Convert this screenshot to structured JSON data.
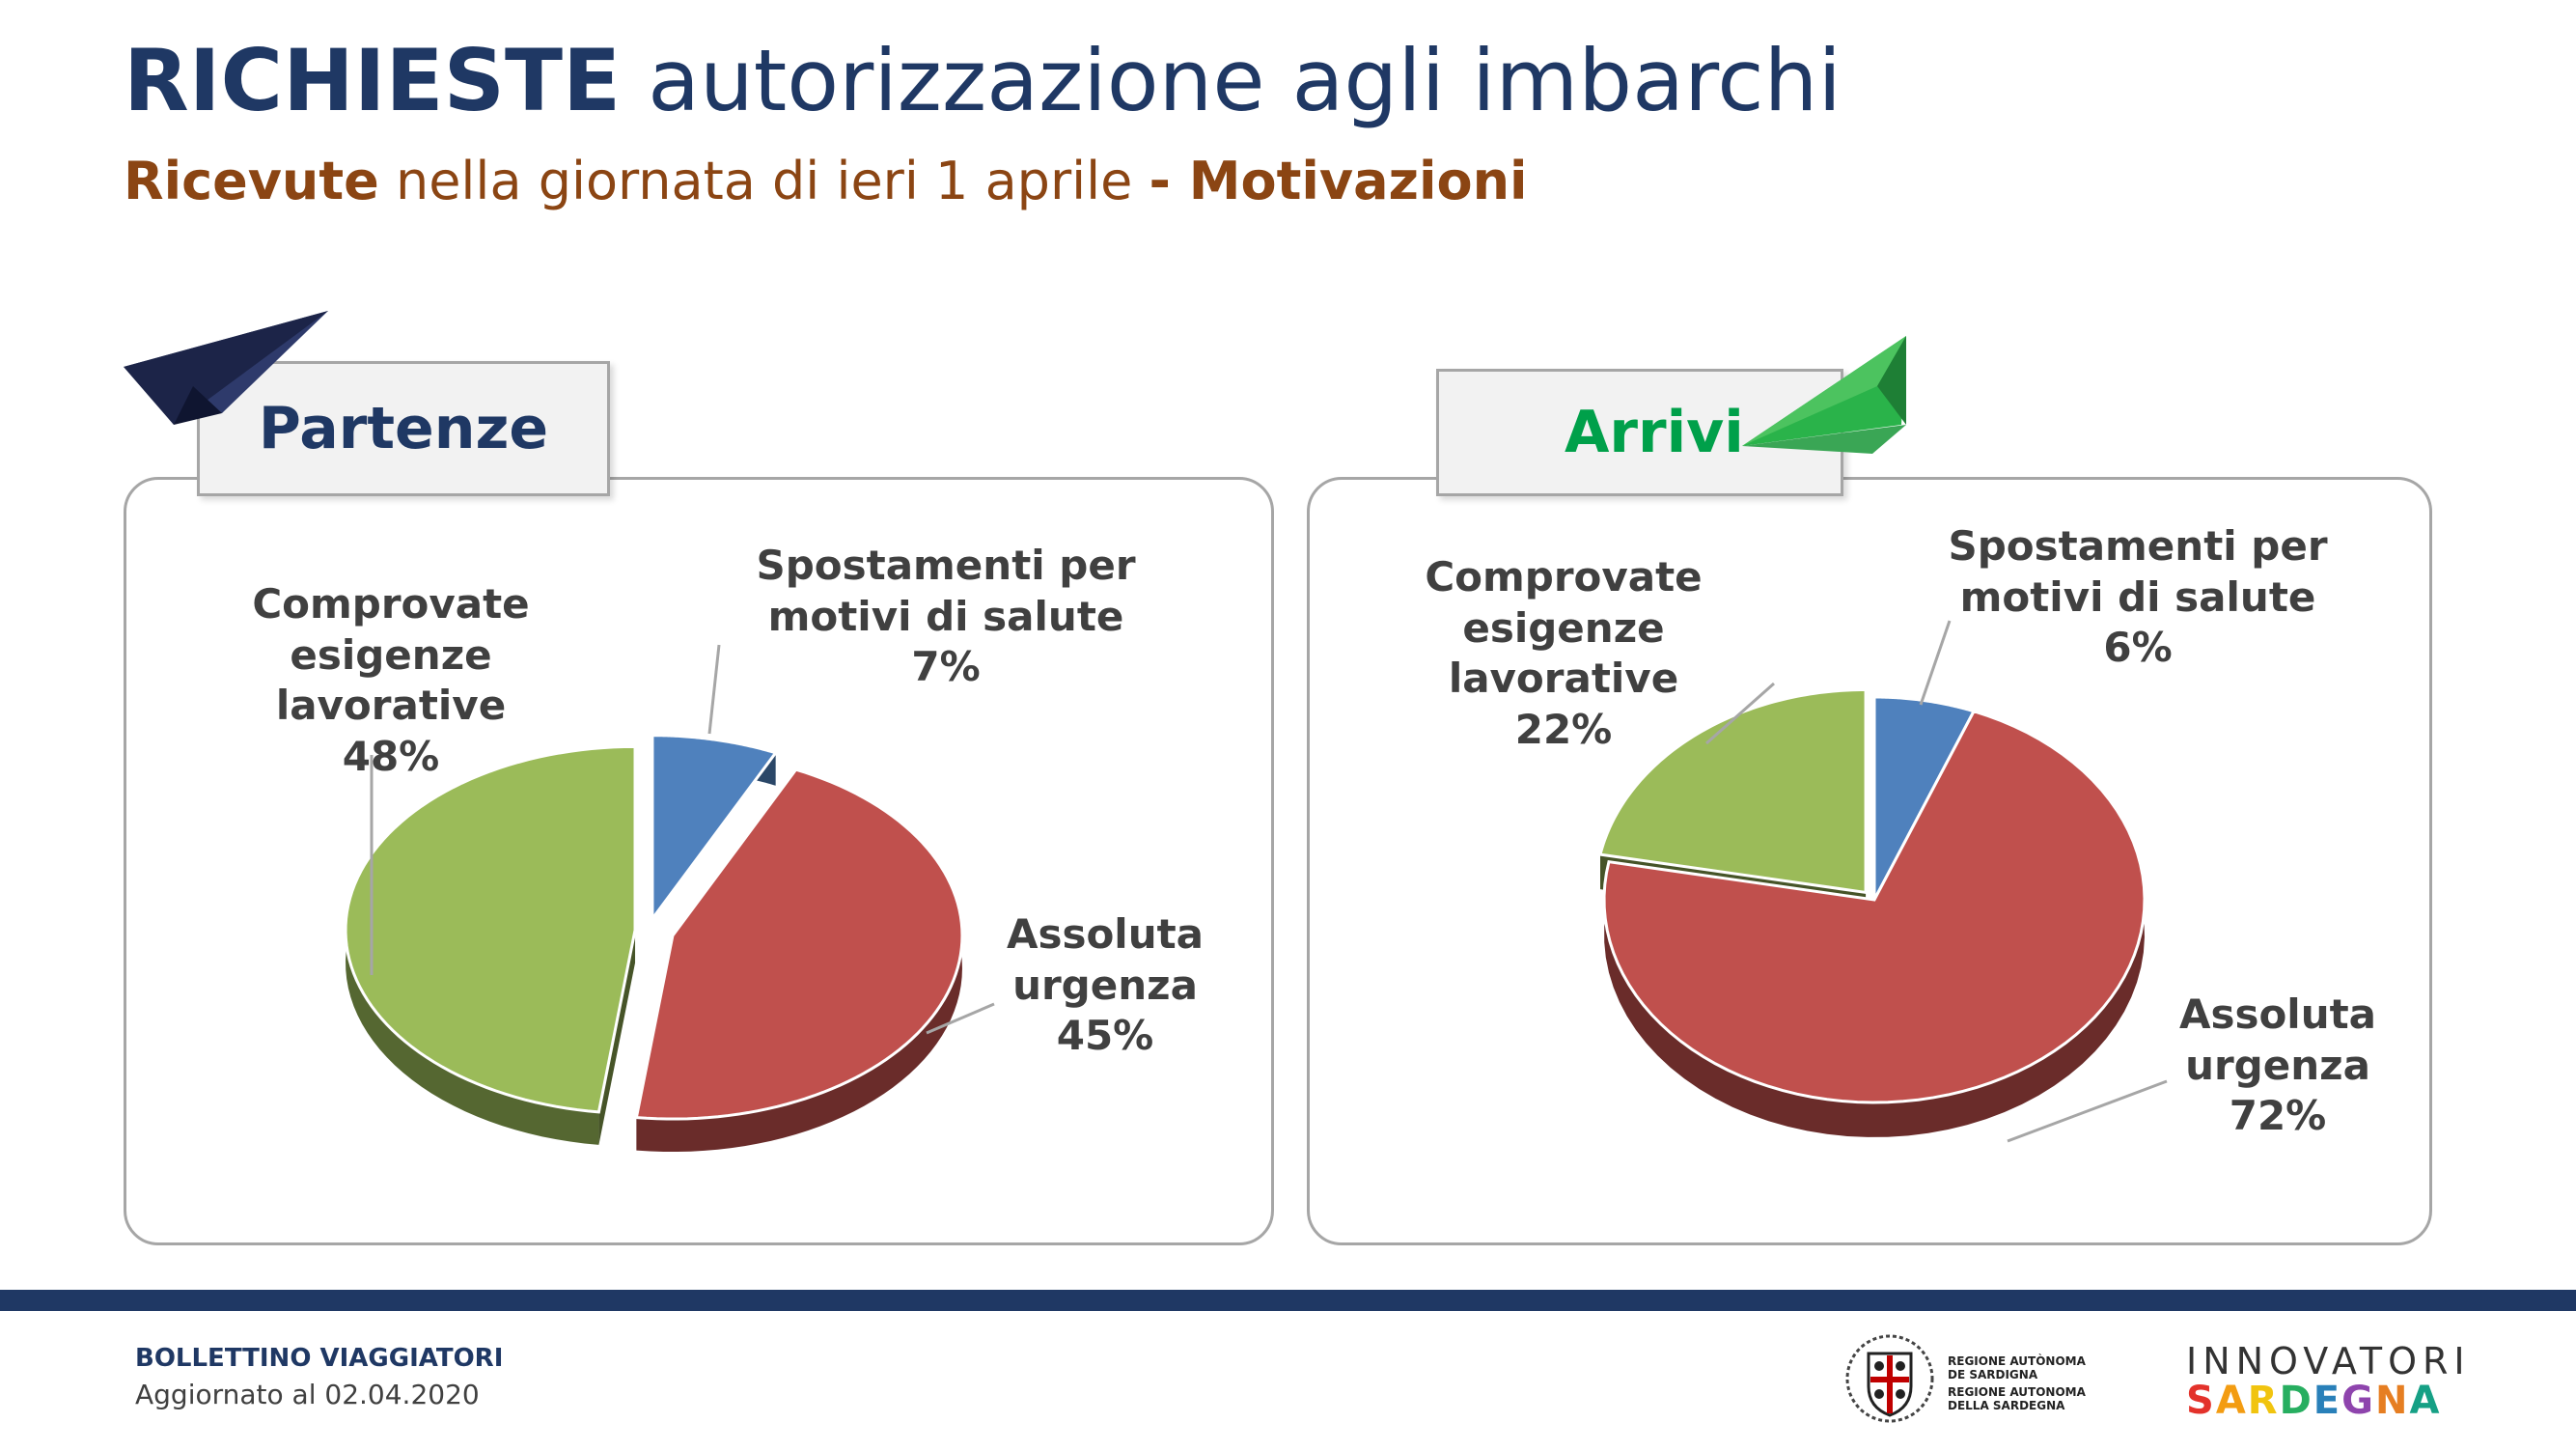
{
  "header": {
    "title_bold": "RICHIESTE",
    "title_rest": "autorizzazione agli imbarchi",
    "subtitle_bold1": "Ricevute",
    "subtitle_mid": "nella giornata di ieri 1 aprile",
    "subtitle_bold2": "- Motivazioni"
  },
  "colors": {
    "navy": "#1f3864",
    "brown": "#8b4513",
    "blue_slice": "#4f81bd",
    "red_slice": "#c0504d",
    "green_slice": "#9bbb59",
    "arrivi_green": "#00a04a"
  },
  "icons": {
    "departure": "paper-plane-navy-icon",
    "arrival": "paper-plane-green-icon"
  },
  "chart_data": [
    {
      "type": "pie",
      "title": "Partenze",
      "categories": [
        "Spostamenti per motivi di salute",
        "Assoluta urgenza",
        "Comprovate esigenze lavorative"
      ],
      "values": [
        7,
        45,
        48
      ],
      "labels": [
        {
          "lines": [
            "Spostamenti per",
            "motivi di salute"
          ],
          "pct": "7%"
        },
        {
          "lines": [
            "Assoluta",
            "urgenza"
          ],
          "pct": "45%"
        },
        {
          "lines": [
            "Comprovate",
            "esigenze lavorative"
          ],
          "pct": "48%"
        }
      ]
    },
    {
      "type": "pie",
      "title": "Arrivi",
      "categories": [
        "Spostamenti per motivi di salute",
        "Assoluta urgenza",
        "Comprovate esigenze lavorative"
      ],
      "values": [
        6,
        72,
        22
      ],
      "labels": [
        {
          "lines": [
            "Spostamenti per",
            "motivi di salute"
          ],
          "pct": "6%"
        },
        {
          "lines": [
            "Assoluta",
            "urgenza"
          ],
          "pct": "72%"
        },
        {
          "lines": [
            "Comprovate",
            "esigenze lavorative"
          ],
          "pct": "22%"
        }
      ]
    }
  ],
  "footer": {
    "title": "BOLLETTINO VIAGGIATORI",
    "updated": "Aggiornato al 02.04.2020",
    "ras_line1a": "REGIONE AUTÒNOMA",
    "ras_line1b": "DE SARDIGNA",
    "ras_line2a": "REGIONE AUTONOMA",
    "ras_line2b": "DELLA SARDEGNA",
    "innovatori": "INNOVATORI",
    "sardegna": "SARDEGNA"
  }
}
